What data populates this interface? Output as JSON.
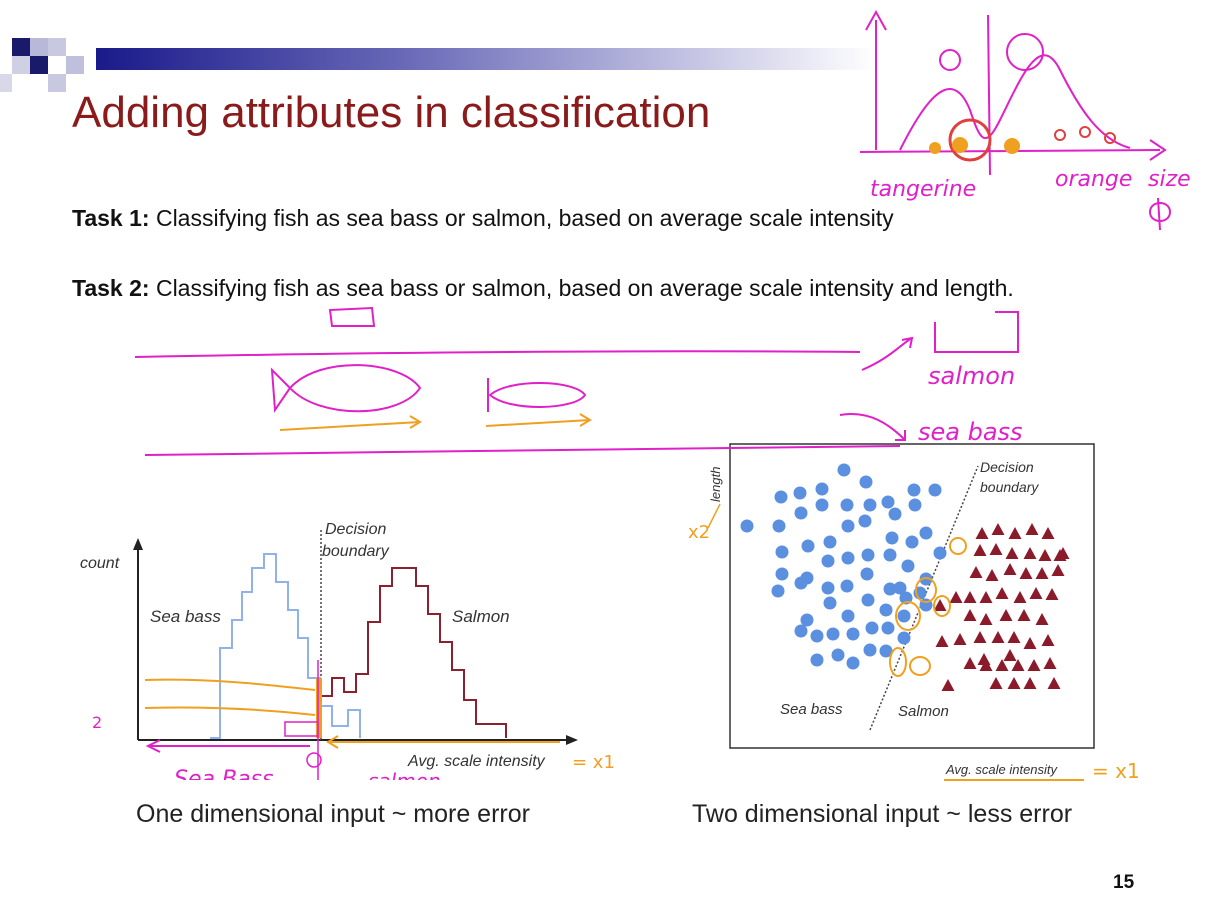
{
  "slide": {
    "title": "Adding attributes in classification",
    "page_number": "15"
  },
  "tasks": [
    {
      "label": "Task 1:",
      "text": "Classifying fish as sea bass or salmon, based on average scale intensity"
    },
    {
      "label": "Task 2:",
      "text": "Classifying fish as sea bass or salmon, based on average scale intensity and length."
    }
  ],
  "left_chart": {
    "y_label": "count",
    "x_label": "Avg. scale intensity",
    "class_a": "Sea bass",
    "class_b": "Salmon",
    "boundary_label_1": "Decision",
    "boundary_label_2": "boundary",
    "caption": "One dimensional input ~ more error"
  },
  "right_chart": {
    "y_label": "length",
    "x_label": "Avg. scale intensity",
    "class_a": "Sea bass",
    "class_b": "Salmon",
    "boundary_label_1": "Decision",
    "boundary_label_2": "boundary",
    "caption": "Two dimensional input ~ less error"
  },
  "annotations": {
    "corner_labels": [
      "tangerine",
      "orange",
      "size"
    ],
    "fish_labels": [
      "salmon",
      "sea bass"
    ],
    "left_notes": [
      "Sea Bass",
      "salmon",
      "= x1",
      "2"
    ],
    "right_notes": [
      "x2",
      "= x1"
    ]
  },
  "colors": {
    "title": "#8b1a1a",
    "pen_magenta": "#e020c8",
    "pen_orange": "#f0a020",
    "seabass": "#5b8fe0",
    "salmon": "#8b1a2a"
  }
}
